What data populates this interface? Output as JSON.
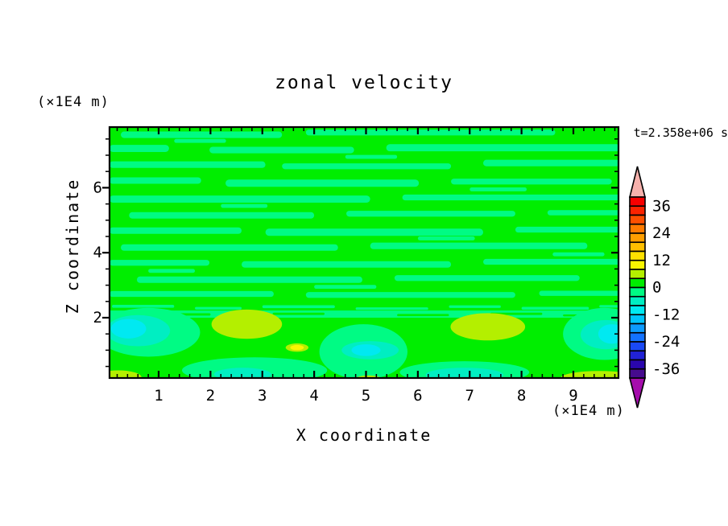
{
  "chart": {
    "title": "zonal velocity",
    "timestamp": "t=2.358e+06 s",
    "background_color": "#ffffff",
    "frame_color": "#000000"
  },
  "axes": {
    "x": {
      "label": "X coordinate",
      "unit": "(×1E4 m)",
      "min": 0.05,
      "max": 9.87,
      "major_ticks": [
        1,
        2,
        3,
        4,
        5,
        6,
        7,
        8,
        9
      ],
      "minor_step": 0.2
    },
    "z": {
      "label": "Z coordinate",
      "unit": "(×1E4 m)",
      "min": 0.14,
      "max": 7.87,
      "major_ticks": [
        2,
        4,
        6
      ],
      "minor_step": 0.5
    }
  },
  "colorbar": {
    "range_min": -40,
    "range_max": 40,
    "step": 4,
    "label_values": [
      36,
      24,
      12,
      0,
      -12,
      -24,
      -36
    ],
    "colors_top_to_bottom": [
      "#f80000",
      "#fb2300",
      "#fd4f00",
      "#ff7b00",
      "#ff9e00",
      "#ffbf00",
      "#ffe100",
      "#faf600",
      "#b4ef00",
      "#00ee00",
      "#00fb84",
      "#00eec2",
      "#00e9f1",
      "#00c4fd",
      "#0d9bff",
      "#1372ff",
      "#1a49f5",
      "#2122d6",
      "#2a06ad",
      "#460b8e"
    ],
    "over_color": "#f7b1ac",
    "under_color": "#a50dac",
    "outline_color": "#000000"
  },
  "chart_data": {
    "type": "filled_contour",
    "title": "zonal velocity",
    "xlabel": "X coordinate (×1E4 m)",
    "ylabel": "Z coordinate (×1E4 m)",
    "xlim": [
      0.05,
      9.87
    ],
    "ylim": [
      0.14,
      7.87
    ],
    "contour_interval": 4,
    "colorbar_range": [
      -40,
      40
    ],
    "value_range_shown": [
      -12,
      12
    ],
    "background_level": 0,
    "field_summary": "Upper region (z>2.1): thin alternating horizontal streaks of 0..4 (green) and -4..0 (spring green). Sharp streaky transition near z=2.1. Lower region (z<2.1): smooth blobs — negative (turquoise/cyan, to -12) patches near x=0.6, 5.0, 9.6 and along the bottom; positive (yellow-green to yellow, to +12) blobs near x=2.7, 7.35, small spot at x=3.7, and in bottom corners.",
    "streaks_level": -4,
    "streaks": [
      [
        0.27,
        3.38,
        7.63,
        0.2
      ],
      [
        3.84,
        8.65,
        7.7,
        0.18
      ],
      [
        0.05,
        1.2,
        7.21,
        0.22
      ],
      [
        1.98,
        4.77,
        7.16,
        0.2
      ],
      [
        5.39,
        9.9,
        7.23,
        0.22
      ],
      [
        0.05,
        3.06,
        6.71,
        0.2
      ],
      [
        3.38,
        6.64,
        6.66,
        0.18
      ],
      [
        7.26,
        9.9,
        6.76,
        0.2
      ],
      [
        0.05,
        1.82,
        6.22,
        0.2
      ],
      [
        2.29,
        6.02,
        6.14,
        0.22
      ],
      [
        6.64,
        9.74,
        6.19,
        0.18
      ],
      [
        0.05,
        5.08,
        5.65,
        0.22
      ],
      [
        5.7,
        9.9,
        5.7,
        0.18
      ],
      [
        0.43,
        4.0,
        5.15,
        0.2
      ],
      [
        4.62,
        7.88,
        5.2,
        0.18
      ],
      [
        8.5,
        9.9,
        5.23,
        0.16
      ],
      [
        0.05,
        2.6,
        4.68,
        0.2
      ],
      [
        3.06,
        7.26,
        4.63,
        0.22
      ],
      [
        7.88,
        9.9,
        4.71,
        0.18
      ],
      [
        0.27,
        4.46,
        4.16,
        0.2
      ],
      [
        5.08,
        9.27,
        4.21,
        0.2
      ],
      [
        0.05,
        1.98,
        3.69,
        0.18
      ],
      [
        2.6,
        6.64,
        3.64,
        0.2
      ],
      [
        7.26,
        9.9,
        3.72,
        0.18
      ],
      [
        0.58,
        4.93,
        3.17,
        0.2
      ],
      [
        5.55,
        9.12,
        3.22,
        0.18
      ],
      [
        0.05,
        3.22,
        2.73,
        0.18
      ],
      [
        3.84,
        7.88,
        2.7,
        0.18
      ],
      [
        8.34,
        9.9,
        2.75,
        0.16
      ],
      [
        1.3,
        2.3,
        7.44,
        0.12
      ],
      [
        4.6,
        5.6,
        6.95,
        0.12
      ],
      [
        7.0,
        8.1,
        5.95,
        0.12
      ],
      [
        2.2,
        3.1,
        5.44,
        0.12
      ],
      [
        6.0,
        7.1,
        4.44,
        0.12
      ],
      [
        0.8,
        1.7,
        3.44,
        0.12
      ],
      [
        4.0,
        5.2,
        2.95,
        0.12
      ],
      [
        8.6,
        9.6,
        3.95,
        0.12
      ],
      [
        0.1,
        1.3,
        2.35,
        0.09
      ],
      [
        1.7,
        2.6,
        2.29,
        0.08
      ],
      [
        3.0,
        4.4,
        2.34,
        0.09
      ],
      [
        4.8,
        6.2,
        2.28,
        0.08
      ],
      [
        6.6,
        7.6,
        2.34,
        0.08
      ],
      [
        8.0,
        9.3,
        2.29,
        0.09
      ],
      [
        9.5,
        9.9,
        2.35,
        0.08
      ]
    ],
    "transition_band": {
      "level": -4,
      "z0": 2.0,
      "z1": 2.22
    },
    "band_dashes_level": 0,
    "band_dashes": [
      [
        1.0,
        2.0,
        2.1,
        0.07
      ],
      [
        3.2,
        4.2,
        2.12,
        0.07
      ],
      [
        5.6,
        6.6,
        2.08,
        0.07
      ],
      [
        7.4,
        8.4,
        2.12,
        0.07
      ],
      [
        0.2,
        0.8,
        2.06,
        0.06
      ],
      [
        8.8,
        9.6,
        2.07,
        0.06
      ]
    ],
    "features": [
      {
        "level": -4,
        "cx": 0.8,
        "cz": 1.55,
        "rx": 1.0,
        "rz": 0.75
      },
      {
        "level": -4,
        "cx": 4.95,
        "cz": 0.95,
        "rx": 0.85,
        "rz": 0.85
      },
      {
        "level": -4,
        "cx": 2.85,
        "cz": 0.38,
        "rx": 1.4,
        "rz": 0.4
      },
      {
        "level": -4,
        "cx": 6.9,
        "cz": 0.32,
        "rx": 1.25,
        "rz": 0.34
      },
      {
        "level": -4,
        "cx": 9.6,
        "cz": 1.5,
        "rx": 0.8,
        "rz": 0.8
      },
      {
        "level": 4,
        "cx": 2.7,
        "cz": 1.8,
        "rx": 0.68,
        "rz": 0.45
      },
      {
        "level": 4,
        "cx": 7.35,
        "cz": 1.72,
        "rx": 0.72,
        "rz": 0.42
      },
      {
        "level": 4,
        "cx": 0.22,
        "cz": 0.16,
        "rx": 0.45,
        "rz": 0.22
      },
      {
        "level": 4,
        "cx": 9.5,
        "cz": 0.14,
        "rx": 0.75,
        "rz": 0.22
      },
      {
        "level": 4,
        "cx": 5.05,
        "cz": 0.1,
        "rx": 0.28,
        "rz": 0.12
      },
      {
        "level": 4,
        "cx": 3.67,
        "cz": 1.08,
        "rx": 0.22,
        "rz": 0.13
      },
      {
        "level": -8,
        "cx": 0.6,
        "cz": 1.6,
        "rx": 0.62,
        "rz": 0.48
      },
      {
        "level": -8,
        "cx": 5.08,
        "cz": 1.0,
        "rx": 0.55,
        "rz": 0.28
      },
      {
        "level": -8,
        "cx": 2.62,
        "cz": 0.26,
        "rx": 0.55,
        "rz": 0.2
      },
      {
        "level": -8,
        "cx": 6.9,
        "cz": 0.24,
        "rx": 0.75,
        "rz": 0.22
      },
      {
        "level": -8,
        "cx": 9.62,
        "cz": 1.48,
        "rx": 0.48,
        "rz": 0.45
      },
      {
        "level": -12,
        "cx": 0.42,
        "cz": 1.66,
        "rx": 0.34,
        "rz": 0.3
      },
      {
        "level": -12,
        "cx": 9.74,
        "cz": 1.5,
        "rx": 0.26,
        "rz": 0.3
      },
      {
        "level": -12,
        "cx": 5.0,
        "cz": 1.0,
        "rx": 0.28,
        "rz": 0.18
      },
      {
        "level": 8,
        "cx": 3.67,
        "cz": 1.08,
        "rx": 0.13,
        "rz": 0.08
      }
    ]
  }
}
